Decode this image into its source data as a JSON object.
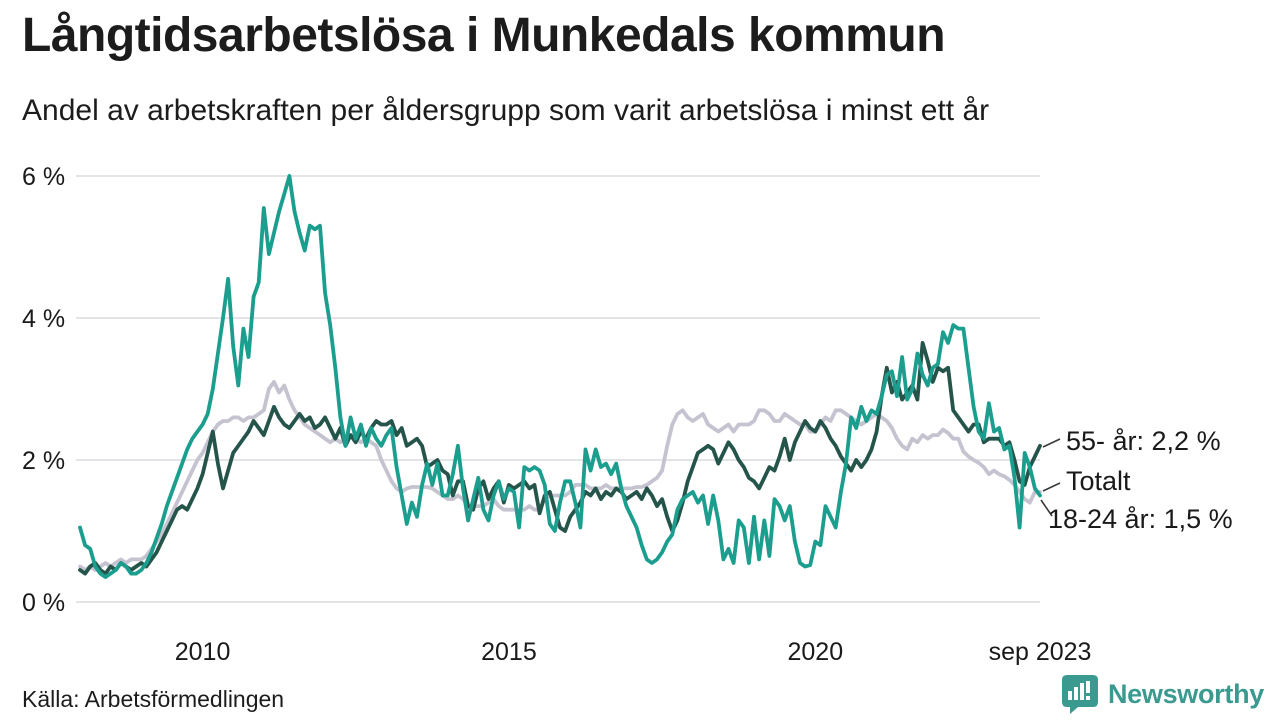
{
  "title": "Långtidsarbetslösa i Munkedals kommun",
  "subtitle": "Andel av arbetskraften per åldersgrupp som varit arbetslösa i minst ett år",
  "source": "Källa: Arbetsförmedlingen",
  "brand": {
    "name": "Newsworthy",
    "color": "#3b9a90"
  },
  "colors": {
    "text": "#1a1a1a",
    "grid": "#e4e3e8",
    "leader": "#3a3a3a"
  },
  "chart_data": {
    "type": "line",
    "title": "Långtidsarbetslösa i Munkedals kommun",
    "subtitle": "Andel av arbetskraften per åldersgrupp som varit arbetslösa i minst ett år",
    "x_unit": "month",
    "x_start": "2008-01",
    "x_end": "2023-09",
    "ylim": [
      0,
      6
    ],
    "grid": true,
    "yticks": [
      {
        "value": 0,
        "label": "0 %"
      },
      {
        "value": 2,
        "label": "2 %"
      },
      {
        "value": 4,
        "label": "4 %"
      },
      {
        "value": 6,
        "label": "6 %"
      }
    ],
    "xticks": [
      {
        "index": 24,
        "label": "2010"
      },
      {
        "index": 84,
        "label": "2015"
      },
      {
        "index": 144,
        "label": "2020"
      },
      {
        "index": 188,
        "label": "sep 2023"
      }
    ],
    "series": [
      {
        "id": "totalt",
        "name": "Totalt",
        "end_label": "Totalt",
        "color": "#c6c3d1",
        "values": [
          0.5,
          0.45,
          0.5,
          0.45,
          0.5,
          0.55,
          0.5,
          0.55,
          0.6,
          0.55,
          0.6,
          0.6,
          0.6,
          0.65,
          0.75,
          0.85,
          0.95,
          1.1,
          1.25,
          1.4,
          1.55,
          1.7,
          1.85,
          2.0,
          2.1,
          2.25,
          2.4,
          2.5,
          2.55,
          2.55,
          2.6,
          2.6,
          2.55,
          2.6,
          2.6,
          2.65,
          2.7,
          3.0,
          3.1,
          2.95,
          3.05,
          2.85,
          2.7,
          2.6,
          2.5,
          2.45,
          2.4,
          2.35,
          2.3,
          2.25,
          2.3,
          2.25,
          2.3,
          2.35,
          2.3,
          2.25,
          2.3,
          2.25,
          2.2,
          2.0,
          1.85,
          1.7,
          1.6,
          1.55,
          1.6,
          1.62,
          1.62,
          1.62,
          1.62,
          1.6,
          1.55,
          1.5,
          1.45,
          1.45,
          1.5,
          1.45,
          1.35,
          1.35,
          1.35,
          1.35,
          1.4,
          1.45,
          1.35,
          1.3,
          1.3,
          1.3,
          1.3,
          1.3,
          1.35,
          1.3,
          1.3,
          1.45,
          1.5,
          1.5,
          1.5,
          1.5,
          1.55,
          1.65,
          1.65,
          1.65,
          1.6,
          1.6,
          1.6,
          1.65,
          1.6,
          1.6,
          1.6,
          1.6,
          1.6,
          1.62,
          1.62,
          1.65,
          1.7,
          1.75,
          1.85,
          2.2,
          2.5,
          2.65,
          2.7,
          2.6,
          2.55,
          2.6,
          2.65,
          2.5,
          2.45,
          2.4,
          2.45,
          2.5,
          2.4,
          2.5,
          2.5,
          2.5,
          2.55,
          2.7,
          2.7,
          2.65,
          2.55,
          2.55,
          2.65,
          2.6,
          2.55,
          2.5,
          2.5,
          2.4,
          2.4,
          2.5,
          2.6,
          2.55,
          2.7,
          2.7,
          2.65,
          2.6,
          2.55,
          2.5,
          2.55,
          2.6,
          2.65,
          2.6,
          2.55,
          2.45,
          2.3,
          2.2,
          2.15,
          2.3,
          2.25,
          2.35,
          2.3,
          2.35,
          2.35,
          2.43,
          2.38,
          2.3,
          2.3,
          2.12,
          2.05,
          2.0,
          1.96,
          1.9,
          1.8,
          1.85,
          1.8,
          1.77,
          1.72,
          1.65,
          1.55,
          1.45,
          1.4,
          1.55,
          1.55
        ]
      },
      {
        "id": "over55",
        "name": "55- år",
        "end_label": "55- år: 2,2 %",
        "color": "#25544b",
        "values": [
          0.45,
          0.4,
          0.5,
          0.55,
          0.45,
          0.4,
          0.5,
          0.45,
          0.55,
          0.5,
          0.45,
          0.5,
          0.55,
          0.5,
          0.6,
          0.7,
          0.85,
          1.0,
          1.15,
          1.3,
          1.35,
          1.3,
          1.45,
          1.6,
          1.8,
          2.1,
          2.4,
          1.95,
          1.6,
          1.85,
          2.1,
          2.2,
          2.3,
          2.4,
          2.55,
          2.45,
          2.35,
          2.55,
          2.75,
          2.6,
          2.5,
          2.45,
          2.55,
          2.65,
          2.55,
          2.6,
          2.45,
          2.5,
          2.6,
          2.45,
          2.3,
          2.45,
          2.2,
          2.35,
          2.25,
          2.4,
          2.3,
          2.45,
          2.55,
          2.5,
          2.5,
          2.55,
          2.35,
          2.45,
          2.2,
          2.25,
          2.3,
          2.2,
          1.9,
          1.95,
          2.0,
          1.85,
          1.8,
          1.5,
          1.7,
          1.7,
          1.35,
          1.3,
          1.6,
          1.7,
          1.45,
          1.6,
          1.7,
          1.4,
          1.65,
          1.6,
          1.65,
          1.7,
          1.6,
          1.65,
          1.25,
          1.5,
          1.55,
          1.3,
          1.05,
          1.0,
          1.2,
          1.3,
          1.4,
          1.55,
          1.5,
          1.6,
          1.45,
          1.55,
          1.5,
          1.6,
          1.55,
          1.45,
          1.5,
          1.55,
          1.45,
          1.6,
          1.5,
          1.35,
          1.45,
          1.2,
          1.0,
          1.15,
          1.4,
          1.7,
          1.9,
          2.1,
          2.15,
          2.2,
          2.15,
          1.95,
          2.1,
          2.25,
          2.15,
          2.0,
          1.9,
          1.75,
          1.7,
          1.6,
          1.75,
          1.9,
          1.85,
          2.05,
          2.3,
          2.0,
          2.25,
          2.4,
          2.55,
          2.45,
          2.4,
          2.55,
          2.45,
          2.3,
          2.2,
          2.05,
          1.95,
          1.85,
          2.0,
          1.9,
          2.0,
          2.15,
          2.4,
          2.9,
          3.3,
          2.95,
          3.1,
          2.85,
          2.95,
          3.05,
          2.85,
          3.65,
          3.4,
          3.1,
          3.3,
          3.25,
          3.3,
          2.7,
          2.6,
          2.5,
          2.4,
          2.5,
          2.5,
          2.25,
          2.3,
          2.3,
          2.3,
          2.2,
          2.25,
          2.0,
          1.7,
          1.65,
          1.9,
          2.05,
          2.2
        ]
      },
      {
        "id": "age1824",
        "name": "18-24 år",
        "end_label": "18-24 år: 1,5 %",
        "color": "#1b9e8e",
        "values": [
          1.05,
          0.8,
          0.75,
          0.5,
          0.4,
          0.35,
          0.4,
          0.45,
          0.55,
          0.5,
          0.4,
          0.4,
          0.45,
          0.55,
          0.7,
          0.9,
          1.1,
          1.35,
          1.55,
          1.75,
          1.95,
          2.15,
          2.3,
          2.4,
          2.5,
          2.65,
          3.0,
          3.5,
          4.0,
          4.55,
          3.6,
          3.05,
          3.85,
          3.45,
          4.3,
          4.5,
          5.55,
          4.9,
          5.2,
          5.5,
          5.75,
          6.0,
          5.5,
          5.2,
          4.95,
          5.3,
          5.25,
          5.3,
          4.35,
          3.9,
          3.3,
          2.6,
          2.2,
          2.6,
          2.3,
          2.5,
          2.2,
          2.45,
          2.3,
          2.2,
          2.35,
          2.45,
          1.9,
          1.5,
          1.1,
          1.4,
          1.2,
          1.65,
          1.95,
          1.65,
          1.95,
          1.5,
          1.5,
          1.8,
          2.2,
          1.6,
          1.15,
          1.45,
          1.75,
          1.3,
          1.15,
          1.5,
          1.7,
          1.45,
          1.6,
          1.55,
          1.05,
          1.9,
          1.85,
          1.9,
          1.85,
          1.65,
          1.1,
          1.0,
          1.4,
          1.7,
          1.7,
          1.4,
          1.05,
          2.15,
          1.85,
          2.15,
          1.9,
          1.95,
          1.8,
          1.95,
          1.6,
          1.35,
          1.2,
          1.05,
          0.8,
          0.6,
          0.55,
          0.6,
          0.7,
          0.85,
          0.95,
          1.3,
          1.45,
          1.5,
          1.55,
          1.4,
          1.5,
          1.1,
          1.5,
          1.15,
          0.6,
          0.75,
          0.55,
          1.15,
          1.05,
          0.55,
          1.2,
          0.6,
          1.15,
          0.65,
          1.45,
          1.35,
          1.15,
          1.35,
          0.85,
          0.55,
          0.5,
          0.52,
          0.85,
          0.8,
          1.35,
          1.2,
          1.05,
          1.55,
          1.95,
          2.6,
          2.45,
          2.75,
          2.55,
          2.7,
          2.65,
          2.9,
          3.2,
          3.25,
          2.9,
          3.45,
          2.85,
          3.0,
          3.5,
          3.2,
          3.05,
          3.3,
          3.35,
          3.8,
          3.65,
          3.9,
          3.85,
          3.85,
          3.3,
          2.75,
          2.4,
          2.3,
          2.8,
          2.4,
          2.45,
          2.15,
          2.2,
          1.75,
          1.05,
          2.1,
          1.9,
          1.6,
          1.5
        ]
      }
    ],
    "legend_position": "right-end-labels"
  }
}
